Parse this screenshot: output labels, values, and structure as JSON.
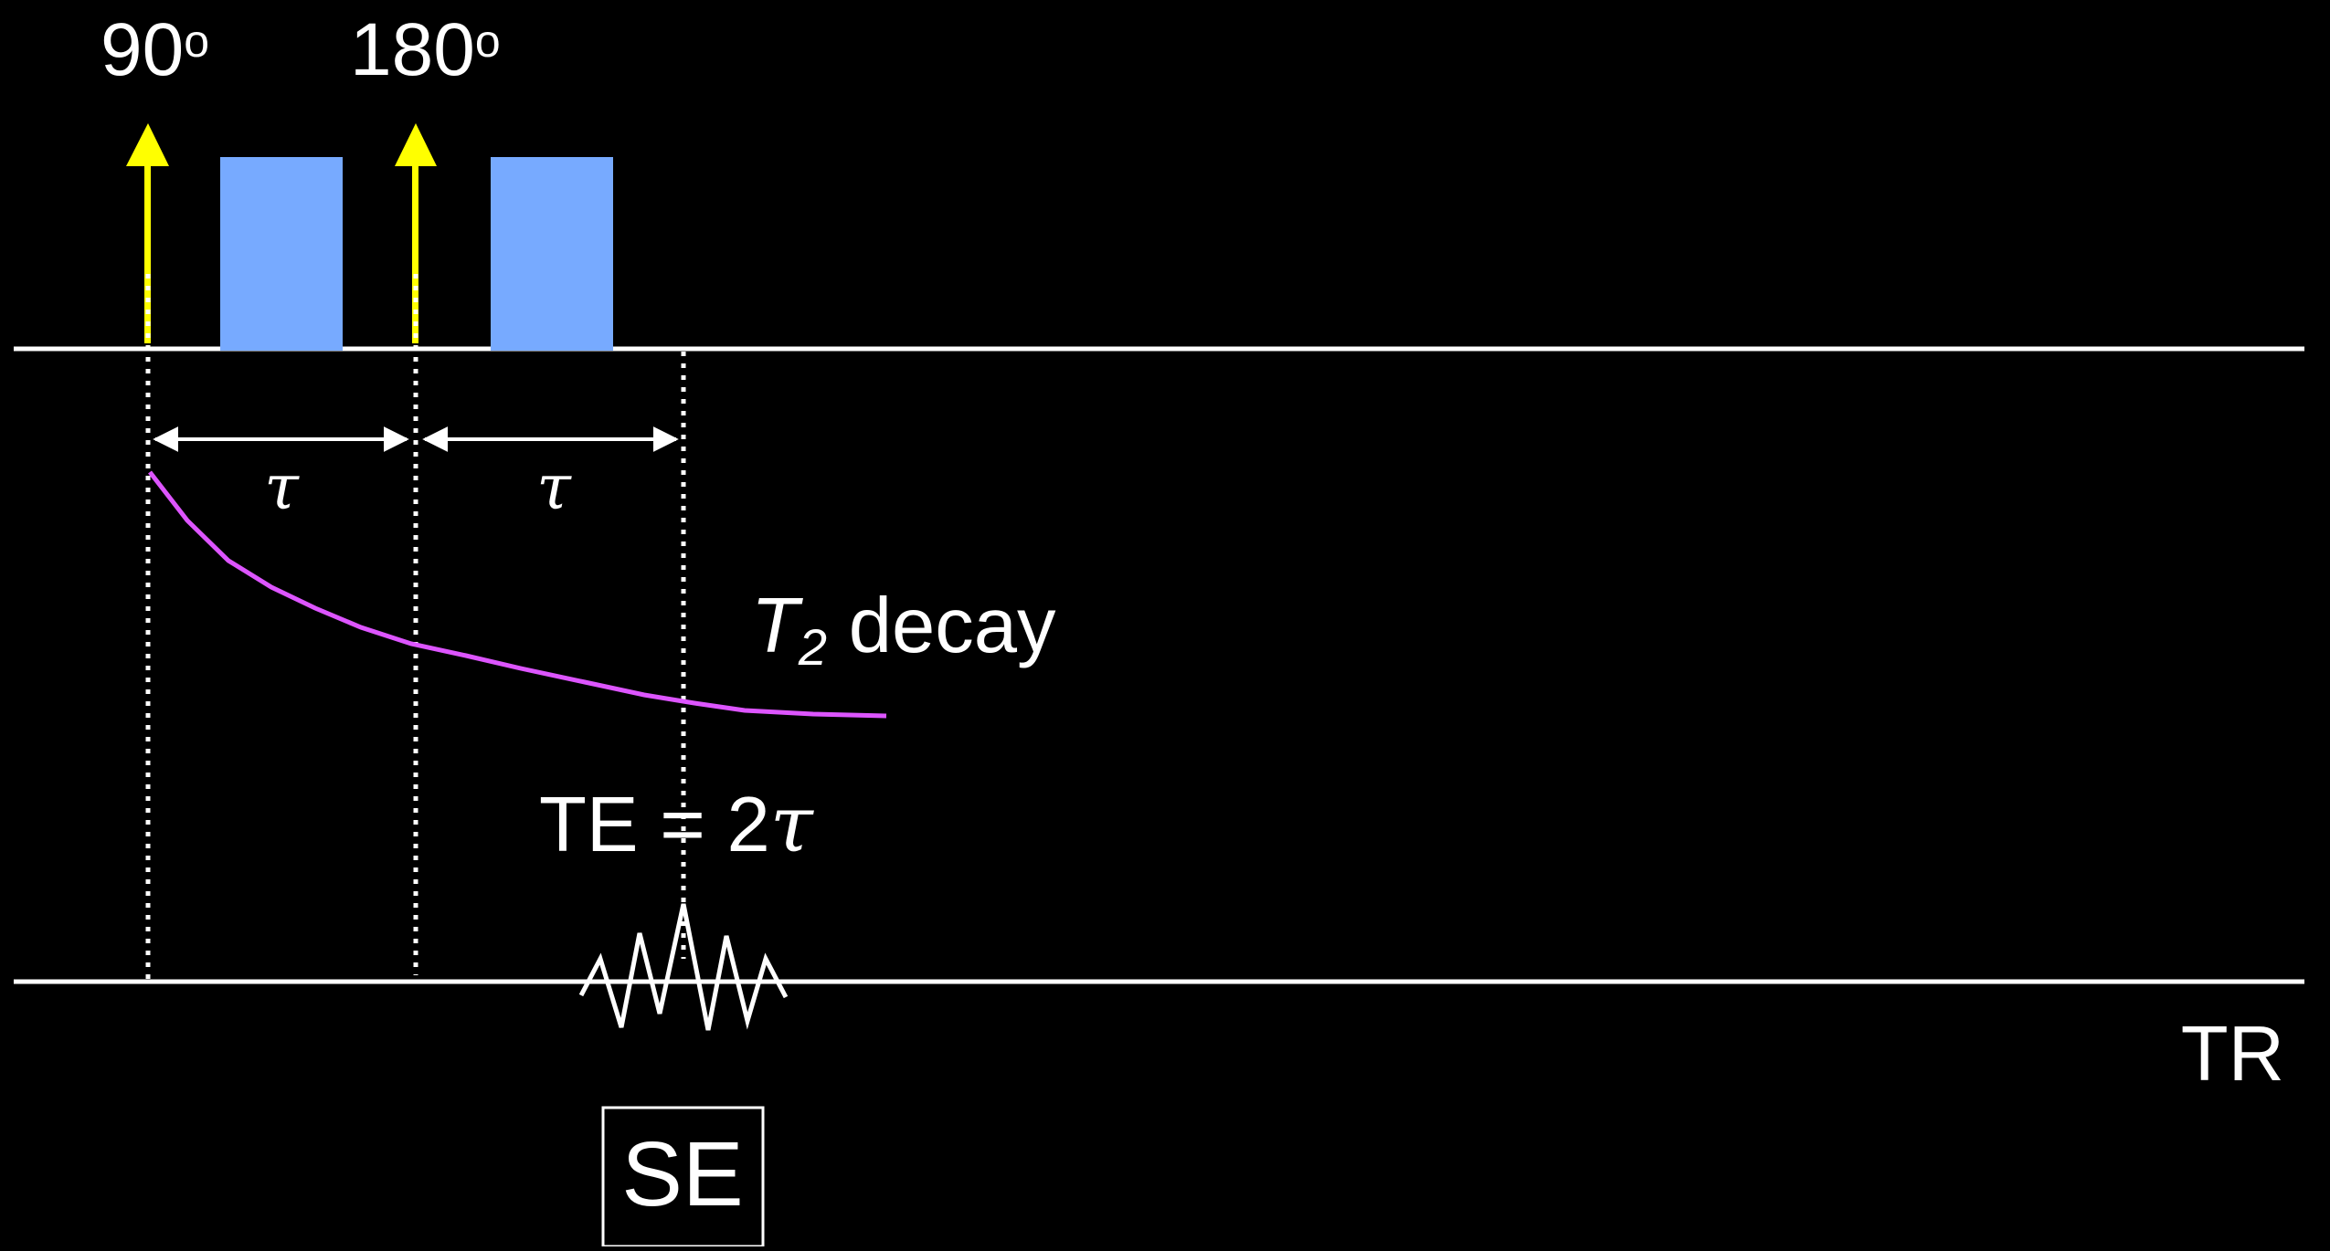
{
  "pulse_labels": {
    "p90": {
      "value": "90",
      "unit": "o"
    },
    "p180": {
      "value": "180",
      "unit": "o"
    }
  },
  "tau_labels": [
    "τ",
    "τ"
  ],
  "decay_label": {
    "symbol": "T",
    "subscript": "2",
    "text": "decay"
  },
  "te_label": {
    "prefix": "TE = 2",
    "symbol": "τ"
  },
  "tr_label": "TR",
  "echo_label": "SE",
  "colors": {
    "background": "#000000",
    "baseline": "#ffffff",
    "rf_arrow": "#ffff00",
    "gradient_block": "#77aaff",
    "decay_curve": "#dd55ff",
    "text": "#ffffff"
  }
}
